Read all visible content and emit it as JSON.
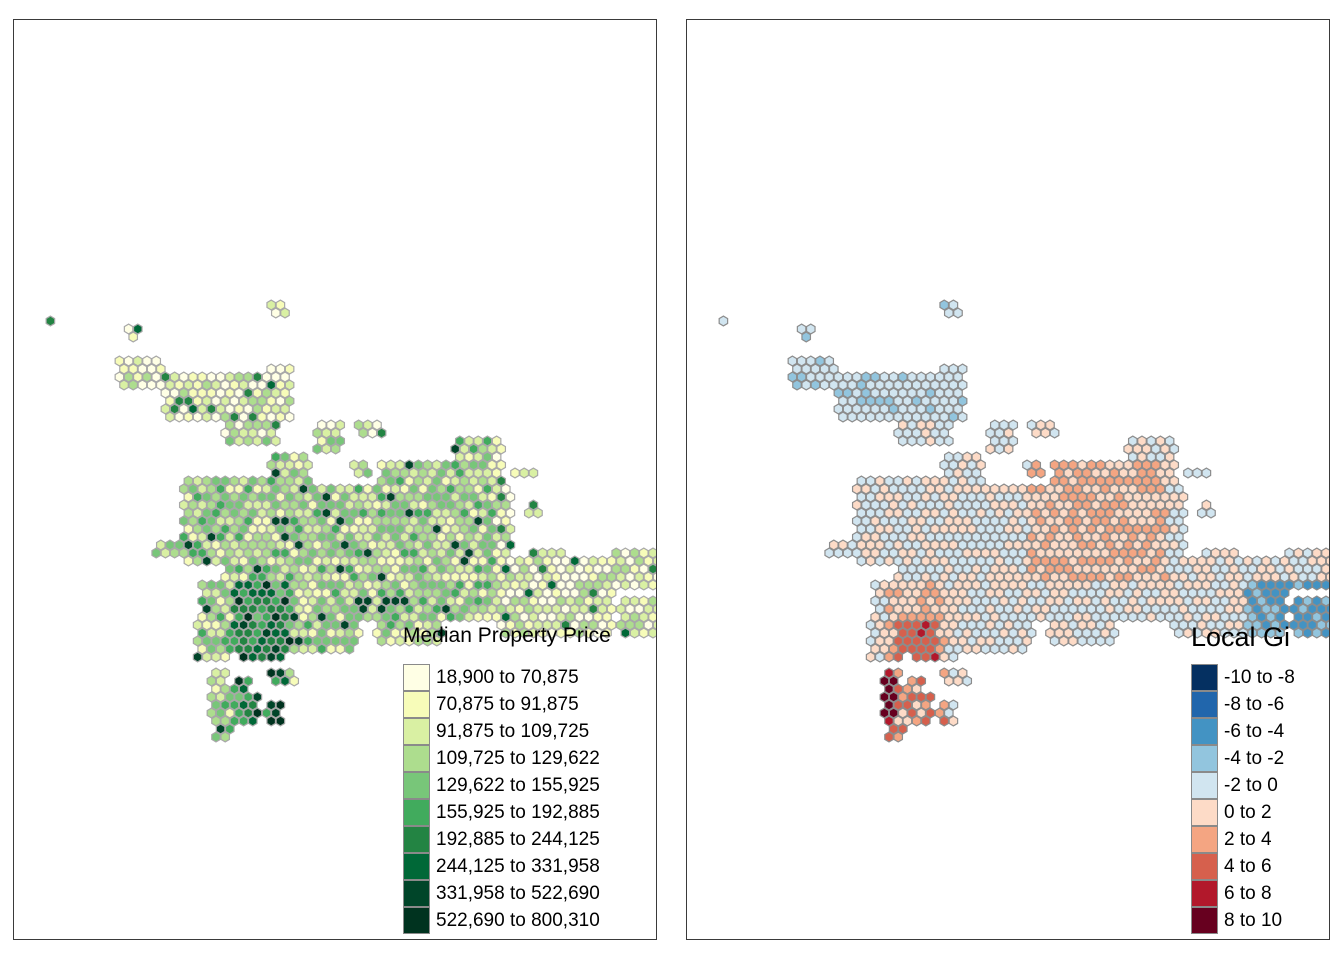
{
  "maps": [
    {
      "id": "price",
      "legend": {
        "title": "Median Property Price",
        "items": [
          {
            "label": "18,900 to 70,875",
            "color": "#ffffe5"
          },
          {
            "label": "70,875 to 91,875",
            "color": "#f7fcb9"
          },
          {
            "label": "91,875 to 109,725",
            "color": "#d9f0a3"
          },
          {
            "label": "109,725 to 129,622",
            "color": "#addd8e"
          },
          {
            "label": "129,622 to 155,925",
            "color": "#78c679"
          },
          {
            "label": "155,925 to 192,885",
            "color": "#41ab5d"
          },
          {
            "label": "192,885 to 244,125",
            "color": "#238443"
          },
          {
            "label": "244,125 to 331,958",
            "color": "#006837"
          },
          {
            "label": "331,958 to 522,690",
            "color": "#004529"
          },
          {
            "label": "522,690 to 800,310",
            "color": "#00331f"
          }
        ]
      }
    },
    {
      "id": "gi",
      "legend": {
        "title": "Local Gi",
        "items": [
          {
            "label": "-10 to -8",
            "color": "#053061"
          },
          {
            "label": "-8 to -6",
            "color": "#2166ac"
          },
          {
            "label": "-6 to -4",
            "color": "#4393c3"
          },
          {
            "label": "-4 to -2",
            "color": "#92c5de"
          },
          {
            "label": "-2 to 0",
            "color": "#d1e5f0"
          },
          {
            "label": "0 to 2",
            "color": "#fddbc7"
          },
          {
            "label": "2 to 4",
            "color": "#f4a582"
          },
          {
            "label": "4 to 6",
            "color": "#d6604d"
          },
          {
            "label": "6 to 8",
            "color": "#b2182b"
          },
          {
            "label": "8 to 10",
            "color": "#67001f"
          }
        ]
      }
    }
  ]
}
